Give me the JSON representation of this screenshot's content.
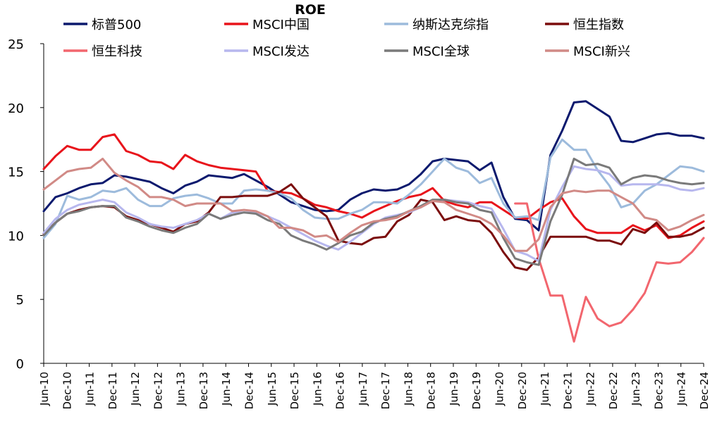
{
  "chart_data": {
    "type": "line",
    "title": "ROE",
    "xlabel": "",
    "ylabel": "",
    "ylim": [
      0,
      25
    ],
    "yticks": [
      0,
      5,
      10,
      15,
      20,
      25
    ],
    "grid": false,
    "legend_position": "top",
    "x_tick_labels": [
      "Jun-10",
      "Dec-10",
      "Jun-11",
      "Dec-11",
      "Jun-12",
      "Dec-12",
      "Jun-13",
      "Dec-13",
      "Jun-14",
      "Dec-14",
      "Jun-15",
      "Dec-15",
      "Jun-16",
      "Dec-16",
      "Jun-17",
      "Dec-17",
      "Jun-18",
      "Dec-18",
      "Jun-19",
      "Dec-19",
      "Jun-20",
      "Dec-20",
      "Jun-21",
      "Dec-21",
      "Jun-22",
      "Dec-22",
      "Jun-23",
      "Dec-23",
      "Jun-24",
      "Dec-24"
    ],
    "series": [
      {
        "name": "标普500",
        "color": "#0c1a6e",
        "values": [
          11.9,
          13.0,
          13.3,
          13.7,
          14.0,
          14.1,
          14.7,
          14.6,
          14.4,
          14.2,
          13.7,
          13.3,
          13.9,
          14.2,
          14.7,
          14.6,
          14.5,
          14.8,
          14.3,
          13.8,
          13.2,
          12.6,
          12.3,
          12.0,
          11.9,
          12.0,
          12.8,
          13.3,
          13.6,
          13.5,
          13.6,
          14.0,
          14.8,
          15.8,
          16.0,
          15.9,
          15.8,
          15.1,
          15.7,
          13.0,
          11.3,
          11.2,
          10.4,
          16.3,
          18.2,
          20.4,
          20.5,
          19.9,
          19.3,
          17.4,
          17.3,
          17.6,
          17.9,
          18.0,
          17.8,
          17.8,
          17.6
        ]
      },
      {
        "name": "MSCI中国",
        "color": "#e8141b",
        "values": [
          15.2,
          16.2,
          17.0,
          16.7,
          16.7,
          17.7,
          17.9,
          16.6,
          16.3,
          15.8,
          15.7,
          15.2,
          16.3,
          15.8,
          15.5,
          15.3,
          15.2,
          15.1,
          15.0,
          13.5,
          13.4,
          13.3,
          12.9,
          12.4,
          12.2,
          11.9,
          11.7,
          11.4,
          11.9,
          12.3,
          12.7,
          13.0,
          13.2,
          13.7,
          12.7,
          12.4,
          12.2,
          12.6,
          12.6,
          12.0,
          11.4,
          11.3,
          12.0,
          12.6,
          12.9,
          11.5,
          10.5,
          10.2,
          10.2,
          10.2,
          10.8,
          10.4,
          10.8,
          9.8,
          10.0,
          10.6,
          11.1
        ]
      },
      {
        "name": "纳斯达克综指",
        "color": "#9dbbdc",
        "values": [
          9.8,
          10.9,
          13.1,
          12.8,
          13.0,
          13.5,
          13.4,
          13.7,
          12.8,
          12.3,
          12.3,
          12.9,
          13.1,
          13.2,
          12.9,
          12.5,
          12.5,
          13.5,
          13.6,
          13.5,
          13.3,
          12.9,
          12.0,
          11.4,
          11.3,
          11.3,
          11.7,
          12.0,
          12.6,
          12.6,
          12.5,
          13.2,
          14.0,
          15.0,
          16.0,
          15.3,
          15.0,
          14.1,
          14.5,
          12.5,
          11.4,
          11.5,
          11.2,
          16.1,
          17.5,
          16.7,
          16.7,
          15.1,
          13.9,
          12.2,
          12.5,
          13.5,
          14.0,
          14.7,
          15.4,
          15.3,
          15.0
        ]
      },
      {
        "name": "恒生指数",
        "color": "#7b0d0d",
        "values": [
          10.1,
          11.0,
          11.7,
          12.0,
          12.2,
          12.3,
          12.2,
          11.5,
          11.2,
          10.9,
          10.6,
          10.3,
          10.9,
          11.1,
          11.8,
          13.0,
          13.0,
          13.1,
          13.1,
          13.1,
          13.4,
          14.0,
          12.9,
          12.2,
          11.5,
          9.6,
          9.4,
          9.3,
          9.8,
          9.9,
          11.1,
          11.6,
          12.8,
          12.6,
          11.2,
          11.5,
          11.2,
          11.1,
          10.2,
          8.7,
          7.5,
          7.3,
          8.3,
          9.9,
          9.9,
          9.9,
          9.9,
          9.6,
          9.6,
          9.3,
          10.5,
          10.2,
          11.0,
          9.9,
          9.9,
          10.1,
          10.6
        ]
      },
      {
        "name": "恒生科技",
        "color": "#f2666e",
        "values": [
          null,
          null,
          null,
          null,
          null,
          null,
          null,
          null,
          null,
          null,
          null,
          null,
          null,
          null,
          null,
          null,
          null,
          null,
          null,
          null,
          null,
          null,
          null,
          null,
          null,
          null,
          null,
          null,
          null,
          null,
          null,
          null,
          null,
          null,
          null,
          null,
          null,
          null,
          null,
          null,
          12.5,
          12.5,
          8.2,
          5.3,
          5.3,
          1.7,
          5.2,
          3.5,
          2.9,
          3.2,
          4.2,
          5.5,
          7.9,
          7.8,
          7.9,
          8.7,
          9.8
        ]
      },
      {
        "name": "MSCI发达",
        "color": "#b7b7ee",
        "values": [
          10.2,
          11.3,
          12.0,
          12.4,
          12.6,
          12.8,
          12.6,
          11.8,
          11.4,
          10.9,
          10.7,
          10.6,
          10.9,
          11.2,
          11.7,
          11.3,
          11.8,
          11.8,
          11.8,
          11.5,
          11.1,
          10.6,
          10.1,
          9.6,
          9.2,
          8.9,
          9.5,
          10.2,
          10.9,
          11.4,
          11.6,
          11.8,
          12.2,
          12.7,
          12.8,
          12.7,
          12.6,
          12.3,
          12.1,
          10.5,
          8.8,
          8.5,
          8.0,
          12.0,
          13.8,
          15.4,
          15.2,
          15.1,
          14.8,
          13.9,
          14.0,
          14.0,
          14.0,
          13.9,
          13.6,
          13.5,
          13.7
        ]
      },
      {
        "name": "MSCI全球",
        "color": "#7a7a7a",
        "values": [
          10.0,
          11.0,
          11.7,
          11.9,
          12.2,
          12.3,
          12.3,
          11.4,
          11.1,
          10.7,
          10.4,
          10.2,
          10.6,
          10.9,
          11.7,
          11.3,
          11.6,
          11.8,
          11.7,
          11.2,
          10.9,
          10.0,
          9.6,
          9.3,
          8.9,
          9.4,
          10.0,
          10.3,
          11.0,
          11.3,
          11.5,
          11.9,
          12.3,
          12.8,
          12.8,
          12.6,
          12.5,
          12.0,
          11.8,
          9.8,
          8.2,
          7.9,
          7.7,
          11.1,
          13.2,
          16.0,
          15.5,
          15.6,
          15.3,
          14.0,
          14.5,
          14.7,
          14.6,
          14.3,
          14.1,
          14.0,
          14.1
        ]
      },
      {
        "name": "MSCI新兴",
        "color": "#d18a86",
        "values": [
          13.6,
          14.3,
          15.0,
          15.2,
          15.3,
          16.0,
          14.9,
          14.3,
          13.8,
          13.0,
          13.0,
          12.8,
          12.3,
          12.5,
          12.5,
          12.5,
          11.9,
          12.0,
          11.9,
          11.5,
          10.6,
          10.6,
          10.4,
          9.9,
          10.0,
          9.5,
          10.2,
          10.8,
          11.1,
          11.2,
          11.4,
          11.9,
          12.2,
          12.7,
          12.6,
          12.0,
          11.7,
          11.4,
          10.9,
          10.0,
          8.8,
          8.8,
          9.7,
          12.2,
          13.3,
          13.5,
          13.4,
          13.5,
          13.5,
          13.0,
          12.5,
          11.4,
          11.2,
          10.4,
          10.7,
          11.2,
          11.6
        ]
      }
    ]
  }
}
